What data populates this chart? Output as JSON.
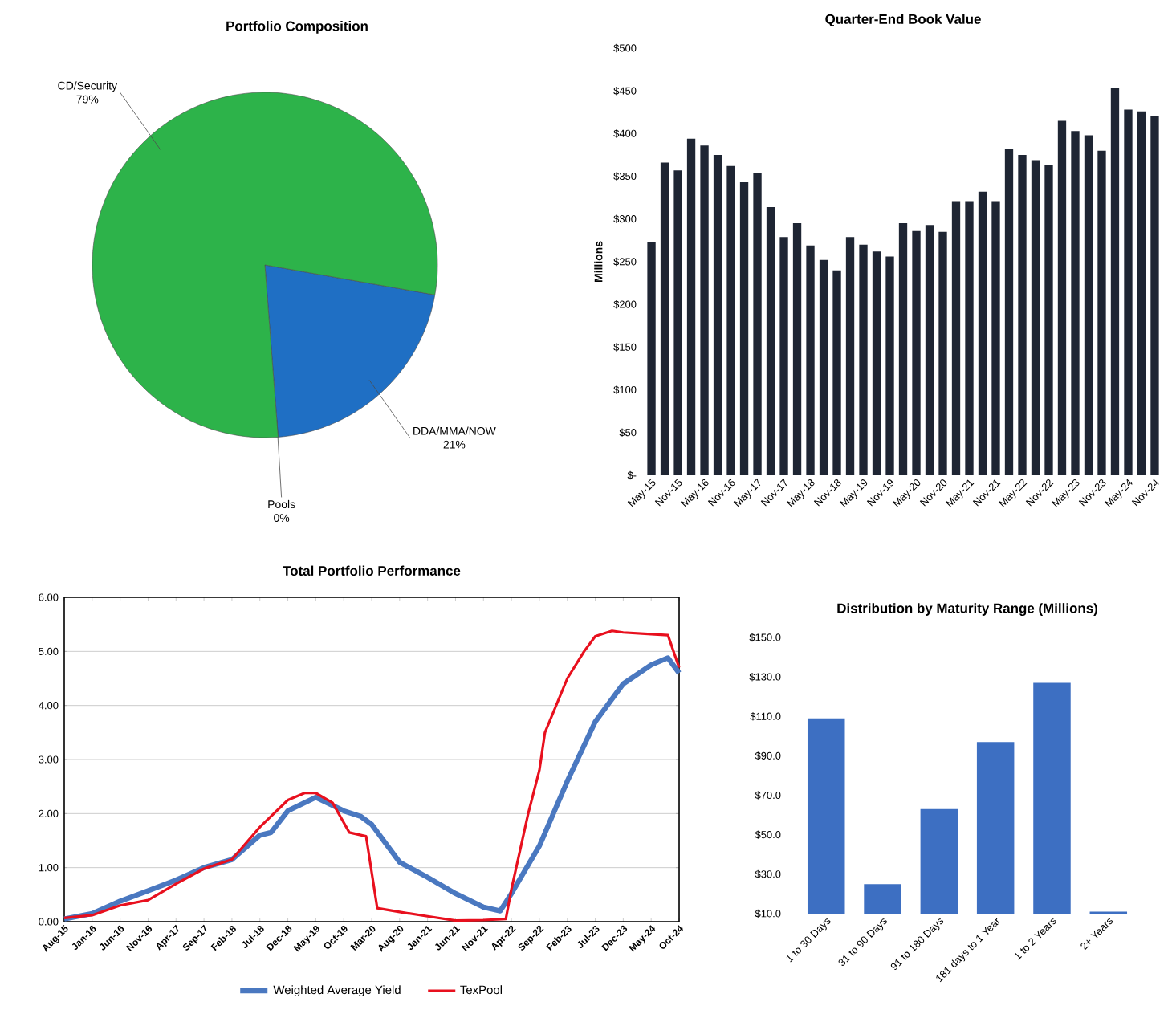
{
  "chart_data": [
    {
      "type": "pie",
      "title": "Portfolio Composition",
      "categories": [
        "DDA/MMA/NOW",
        "Pools",
        "CD/Security"
      ],
      "values": [
        21,
        0,
        79
      ],
      "colors": [
        "#1f6fc4",
        "#e01010",
        "#2db34a"
      ],
      "value_labels": [
        "21%",
        "0%",
        "79%"
      ]
    },
    {
      "type": "bar",
      "title": "Quarter-End Book Value",
      "ylabel": "Millions",
      "color": "#1e2533",
      "categories": [
        "May-15",
        null,
        "Nov-15",
        null,
        "May-16",
        null,
        "Nov-16",
        null,
        "May-17",
        null,
        "Nov-17",
        null,
        "May-18",
        null,
        "Nov-18",
        null,
        "May-19",
        null,
        "Nov-19",
        null,
        "May-20",
        null,
        "Nov-20",
        null,
        "May-21",
        null,
        "Nov-21",
        null,
        "May-22",
        null,
        "Nov-22",
        null,
        "May-23",
        null,
        "Nov-23",
        null,
        "May-24",
        null,
        "Nov-24"
      ],
      "values": [
        273,
        366,
        357,
        394,
        386,
        375,
        362,
        343,
        354,
        314,
        279,
        295,
        269,
        252,
        240,
        279,
        270,
        262,
        256,
        295,
        286,
        293,
        285,
        321,
        321,
        332,
        321,
        382,
        375,
        369,
        363,
        415,
        403,
        398,
        380,
        454,
        428,
        426,
        421
      ],
      "ylim": [
        0,
        500
      ],
      "yticks": [
        {
          "value": 0,
          "label": "$-"
        },
        {
          "value": 50,
          "label": "$50"
        },
        {
          "value": 100,
          "label": "$100"
        },
        {
          "value": 150,
          "label": "$150"
        },
        {
          "value": 200,
          "label": "$200"
        },
        {
          "value": 250,
          "label": "$250"
        },
        {
          "value": 300,
          "label": "$300"
        },
        {
          "value": 350,
          "label": "$350"
        },
        {
          "value": 400,
          "label": "$400"
        },
        {
          "value": 450,
          "label": "$450"
        },
        {
          "value": 500,
          "label": "$500"
        }
      ]
    },
    {
      "type": "line",
      "title": "Total Portfolio Performance",
      "grid": "y",
      "legend": "bottom",
      "xlim": [
        "2015-08",
        "2024-10"
      ],
      "xticks": [
        {
          "value": "2015-08",
          "label": "Aug-15"
        },
        {
          "value": "2016-01",
          "label": "Jan-16"
        },
        {
          "value": "2016-06",
          "label": "Jun-16"
        },
        {
          "value": "2016-11",
          "label": "Nov-16"
        },
        {
          "value": "2017-04",
          "label": "Apr-17"
        },
        {
          "value": "2017-09",
          "label": "Sep-17"
        },
        {
          "value": "2018-02",
          "label": "Feb-18"
        },
        {
          "value": "2018-07",
          "label": "Jul-18"
        },
        {
          "value": "2018-12",
          "label": "Dec-18"
        },
        {
          "value": "2019-05",
          "label": "May-19"
        },
        {
          "value": "2019-10",
          "label": "Oct-19"
        },
        {
          "value": "2020-03",
          "label": "Mar-20"
        },
        {
          "value": "2020-08",
          "label": "Aug-20"
        },
        {
          "value": "2021-01",
          "label": "Jan-21"
        },
        {
          "value": "2021-06",
          "label": "Jun-21"
        },
        {
          "value": "2021-11",
          "label": "Nov-21"
        },
        {
          "value": "2022-04",
          "label": "Apr-22"
        },
        {
          "value": "2022-09",
          "label": "Sep-22"
        },
        {
          "value": "2023-02",
          "label": "Feb-23"
        },
        {
          "value": "2023-07",
          "label": "Jul-23"
        },
        {
          "value": "2023-12",
          "label": "Dec-23"
        },
        {
          "value": "2024-05",
          "label": "May-24"
        },
        {
          "value": "2024-10",
          "label": "Oct-24"
        }
      ],
      "ylim": [
        0,
        6
      ],
      "yticks": [
        {
          "value": 0,
          "label": "0.00"
        },
        {
          "value": 1,
          "label": "1.00"
        },
        {
          "value": 2,
          "label": "2.00"
        },
        {
          "value": 3,
          "label": "3.00"
        },
        {
          "value": 4,
          "label": "4.00"
        },
        {
          "value": 5,
          "label": "5.00"
        },
        {
          "value": 6,
          "label": "6.00"
        }
      ],
      "series": [
        {
          "name": "Weighted Average Yield",
          "color": "#4a78c0",
          "x": [
            "2015-08",
            "2016-01",
            "2016-06",
            "2016-11",
            "2017-04",
            "2017-09",
            "2018-02",
            "2018-07",
            "2018-09",
            "2018-12",
            "2019-05",
            "2019-10",
            "2020-01",
            "2020-03",
            "2020-08",
            "2021-01",
            "2021-06",
            "2021-11",
            "2022-02",
            "2022-04",
            "2022-09",
            "2023-02",
            "2023-07",
            "2023-12",
            "2024-05",
            "2024-08",
            "2024-10"
          ],
          "values": [
            0.05,
            0.15,
            0.38,
            0.57,
            0.77,
            1.0,
            1.15,
            1.6,
            1.65,
            2.05,
            2.3,
            2.05,
            1.95,
            1.8,
            1.1,
            0.82,
            0.52,
            0.27,
            0.2,
            0.52,
            1.4,
            2.6,
            3.7,
            4.4,
            4.75,
            4.88,
            4.6
          ]
        },
        {
          "name": "TexPool",
          "color": "#e8101e",
          "x": [
            "2015-08",
            "2016-01",
            "2016-06",
            "2016-11",
            "2017-04",
            "2017-09",
            "2018-02",
            "2018-07",
            "2018-12",
            "2019-03",
            "2019-05",
            "2019-08",
            "2019-11",
            "2020-02",
            "2020-04",
            "2020-08",
            "2021-01",
            "2021-06",
            "2021-11",
            "2022-03",
            "2022-04",
            "2022-07",
            "2022-09",
            "2022-10",
            "2023-02",
            "2023-05",
            "2023-07",
            "2023-10",
            "2023-12",
            "2024-05",
            "2024-08",
            "2024-10"
          ],
          "values": [
            0.07,
            0.12,
            0.3,
            0.4,
            0.7,
            0.98,
            1.15,
            1.75,
            2.25,
            2.38,
            2.38,
            2.2,
            1.65,
            1.58,
            0.25,
            0.18,
            0.1,
            0.02,
            0.03,
            0.05,
            0.6,
            2.0,
            2.8,
            3.5,
            4.5,
            5.0,
            5.28,
            5.38,
            5.35,
            5.32,
            5.3,
            4.7
          ]
        }
      ]
    },
    {
      "type": "bar",
      "title": "Distribution by Maturity Range (Millions)",
      "color": "#3d6fc2",
      "categories": [
        "1 to 30 Days",
        "31 to 90 Days",
        "91 to 180 Days",
        "181 days to 1 Year",
        "1 to 2 Years",
        "2+ Years"
      ],
      "values": [
        109,
        25,
        63,
        97,
        127,
        11
      ],
      "ylim": [
        10,
        150
      ],
      "yticks": [
        {
          "value": 10,
          "label": "$10.0"
        },
        {
          "value": 30,
          "label": "$30.0"
        },
        {
          "value": 50,
          "label": "$50.0"
        },
        {
          "value": 70,
          "label": "$70.0"
        },
        {
          "value": 90,
          "label": "$90.0"
        },
        {
          "value": 110,
          "label": "$110.0"
        },
        {
          "value": 130,
          "label": "$130.0"
        },
        {
          "value": 150,
          "label": "$150.0"
        }
      ]
    }
  ]
}
